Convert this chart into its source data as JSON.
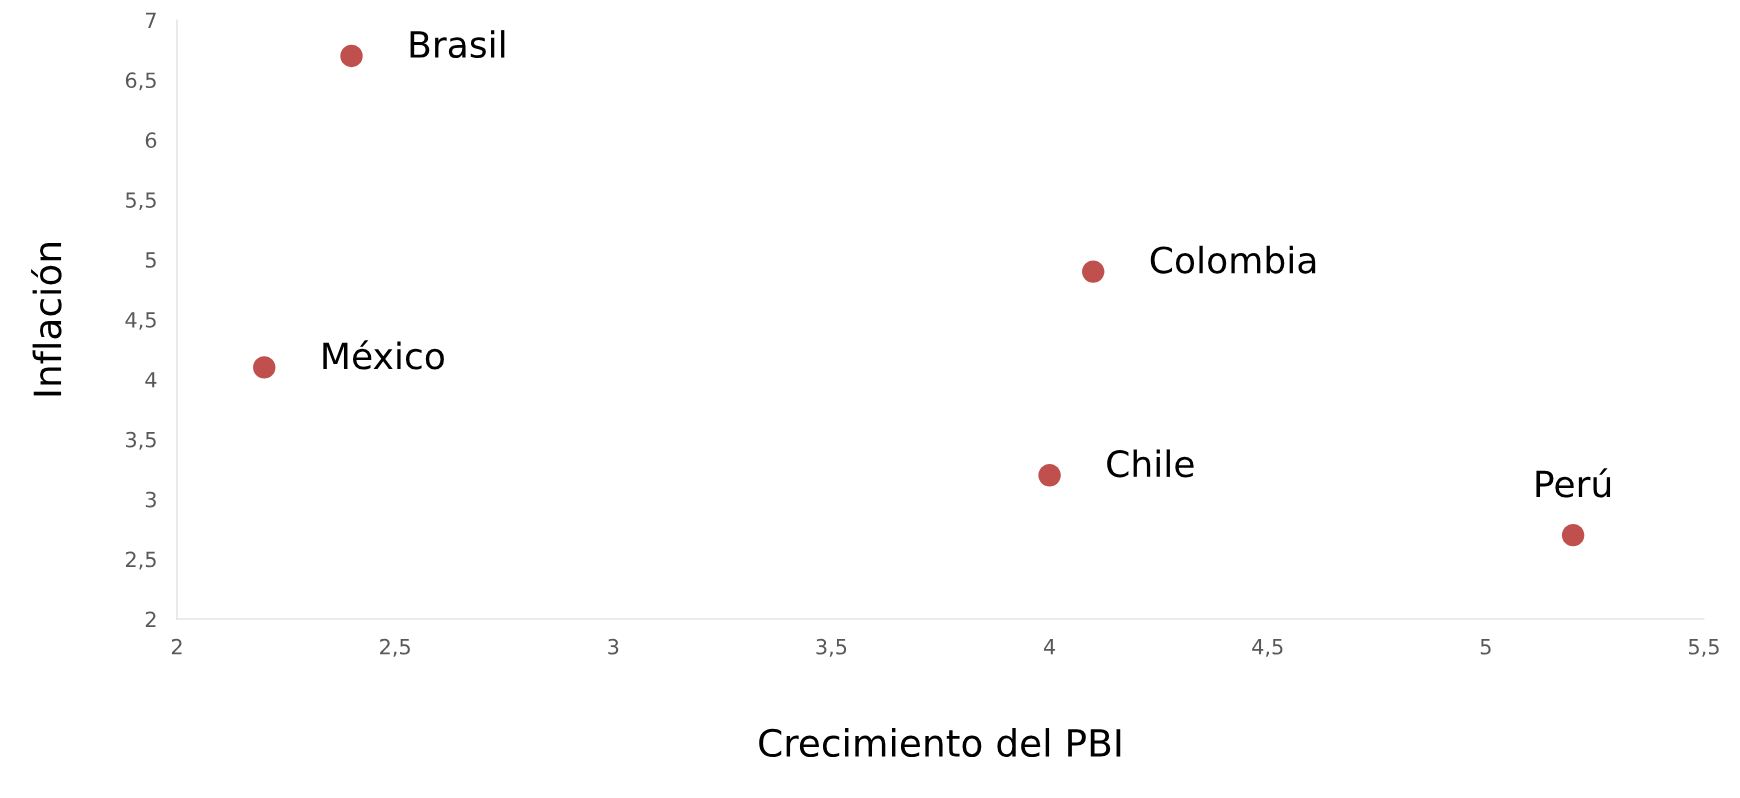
{
  "chart_data": {
    "type": "scatter",
    "xlabel": "Crecimiento del PBI",
    "ylabel": "Inflación",
    "x": [
      2.4,
      4.1,
      2.2,
      4.0,
      5.2
    ],
    "values": [
      6.7,
      4.9,
      4.1,
      3.2,
      2.7
    ],
    "color": "#c0504d",
    "marker": "circle",
    "grid": false,
    "legend": false,
    "xlim": [
      2,
      5.5
    ],
    "ylim": [
      2,
      7
    ],
    "xticks": [
      2,
      {
        "value": 2.5,
        "label": "2,5"
      },
      3,
      {
        "value": 3.5,
        "label": "3,5"
      },
      4,
      {
        "value": 4.5,
        "label": "4,5"
      },
      5,
      {
        "value": 5.5,
        "label": "5,5"
      }
    ],
    "yticks": [
      2,
      {
        "value": 2.5,
        "label": "2,5"
      },
      3,
      {
        "value": 3.5,
        "label": "3,5"
      },
      4,
      {
        "value": 4.5,
        "label": "4,5"
      },
      5,
      {
        "value": 5.5,
        "label": "5,5"
      },
      6,
      {
        "value": 6.5,
        "label": "6,5"
      },
      7
    ],
    "annotations": [
      {
        "text": "Brasil",
        "x": 2.4,
        "y": 6.7
      },
      {
        "text": "Colombia",
        "x": 4.1,
        "y": 4.9
      },
      {
        "text": "México",
        "x": 2.2,
        "y": 4.1
      },
      {
        "text": "Chile",
        "x": 4.0,
        "y": 3.2
      },
      {
        "text": "Perú",
        "x": 5.2,
        "y": 2.7
      }
    ]
  }
}
